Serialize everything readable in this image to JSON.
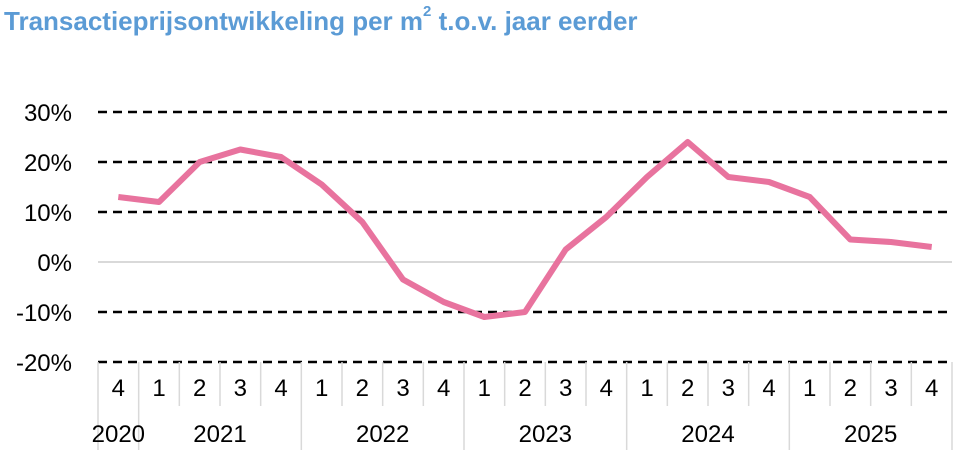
{
  "chart_data": {
    "type": "line",
    "title_main": "Transactieprijsontwikkeling per m",
    "title_sup": "2",
    "title_rest": " t.o.v. jaar eerder",
    "xlabel": "",
    "ylabel": "",
    "ylim": [
      -20,
      30
    ],
    "yticks": [
      30,
      20,
      10,
      0,
      -10,
      -20
    ],
    "ytick_labels": [
      "30%",
      "20%",
      "10%",
      "0%",
      "-10%",
      "-20%"
    ],
    "grid": "dashed horizontal",
    "quarters": [
      "4",
      "1",
      "2",
      "3",
      "4",
      "1",
      "2",
      "3",
      "4",
      "1",
      "2",
      "3",
      "4",
      "1",
      "2",
      "3",
      "4",
      "1",
      "2",
      "3",
      "4"
    ],
    "years": [
      {
        "label": "2020",
        "quarters": 1
      },
      {
        "label": "2021",
        "quarters": 4
      },
      {
        "label": "2022",
        "quarters": 4
      },
      {
        "label": "2023",
        "quarters": 4
      },
      {
        "label": "2024",
        "quarters": 4
      },
      {
        "label": "2025",
        "quarters": 4
      }
    ],
    "series": [
      {
        "color": "#e8739e",
        "values": [
          13,
          12,
          20,
          22.5,
          21,
          15.5,
          8,
          -3.5,
          -8,
          -11,
          -10,
          2.5,
          9,
          17,
          24,
          17,
          16,
          13,
          4.5,
          4,
          3
        ]
      }
    ]
  }
}
